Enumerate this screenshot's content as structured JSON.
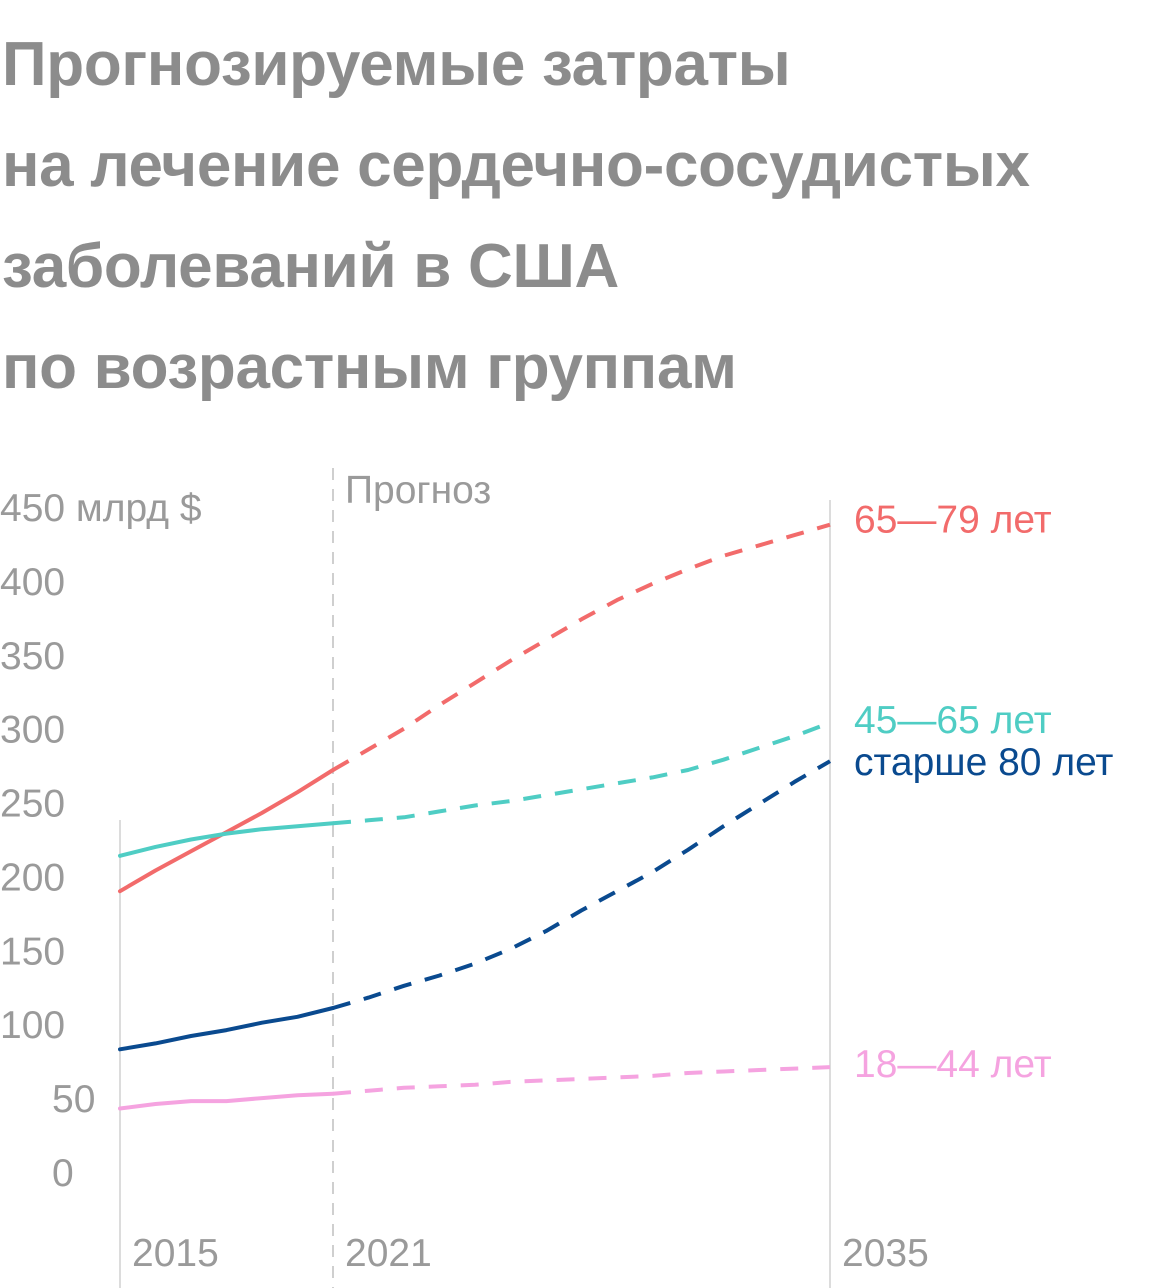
{
  "title_lines": [
    "Прогнозируемые затраты",
    "на лечение сердечно-сосудистых",
    "заболеваний в США",
    "по возрастным группам"
  ],
  "chart_data": {
    "type": "line",
    "title": "Прогнозируемые затраты на лечение сердечно-сосудистых заболеваний в США по возрастным группам",
    "ylabel_unit": "млрд $",
    "ylim": [
      0,
      450
    ],
    "xlim": [
      2015,
      2035
    ],
    "y_ticks": [
      0,
      50,
      100,
      150,
      200,
      250,
      300,
      350,
      400,
      450
    ],
    "y_tick_labels": [
      "0",
      "50",
      "100",
      "150",
      "200",
      "250",
      "300",
      "350",
      "400",
      "450 млрд $"
    ],
    "x_ticks": [
      2015,
      2021,
      2035
    ],
    "x_tick_labels": [
      "2015",
      "2021",
      "2035"
    ],
    "forecast_start": 2021,
    "forecast_label": "Прогноз",
    "grid": false,
    "series": [
      {
        "name": "65—79 лет",
        "color": "#f26b6b",
        "x": [
          2015,
          2016,
          2017,
          2018,
          2019,
          2020,
          2021,
          2022,
          2023,
          2024,
          2025,
          2026,
          2027,
          2028,
          2029,
          2030,
          2031,
          2032,
          2033,
          2034,
          2035
        ],
        "values": [
          190,
          204,
          217,
          230,
          243,
          257,
          272,
          286,
          300,
          316,
          331,
          346,
          360,
          374,
          387,
          398,
          408,
          417,
          424,
          431,
          438
        ]
      },
      {
        "name": "45—65 лет",
        "color": "#4fcdc4",
        "x": [
          2015,
          2016,
          2017,
          2018,
          2019,
          2020,
          2021,
          2022,
          2023,
          2024,
          2025,
          2026,
          2027,
          2028,
          2029,
          2030,
          2031,
          2032,
          2033,
          2034,
          2035
        ],
        "values": [
          214,
          220,
          225,
          229,
          232,
          234,
          236,
          238,
          240,
          244,
          248,
          251,
          255,
          259,
          263,
          267,
          272,
          279,
          287,
          295,
          304
        ]
      },
      {
        "name": "старше 80 лет",
        "color": "#0a4a8f",
        "x": [
          2015,
          2016,
          2017,
          2018,
          2019,
          2020,
          2021,
          2022,
          2023,
          2024,
          2025,
          2026,
          2027,
          2028,
          2029,
          2030,
          2031,
          2032,
          2033,
          2034,
          2035
        ],
        "values": [
          83,
          87,
          92,
          96,
          101,
          105,
          111,
          118,
          126,
          133,
          141,
          151,
          163,
          177,
          190,
          203,
          218,
          234,
          249,
          264,
          278
        ]
      },
      {
        "name": "18—44 лет",
        "color": "#f5a3e0",
        "x": [
          2015,
          2016,
          2017,
          2018,
          2019,
          2020,
          2021,
          2022,
          2023,
          2024,
          2025,
          2026,
          2027,
          2028,
          2029,
          2030,
          2031,
          2032,
          2033,
          2034,
          2035
        ],
        "values": [
          43,
          46,
          48,
          48,
          50,
          52,
          53,
          55,
          57,
          58,
          59,
          61,
          62,
          63,
          64,
          65,
          67,
          68,
          69,
          70,
          71
        ]
      }
    ],
    "legend_placement": "right"
  }
}
